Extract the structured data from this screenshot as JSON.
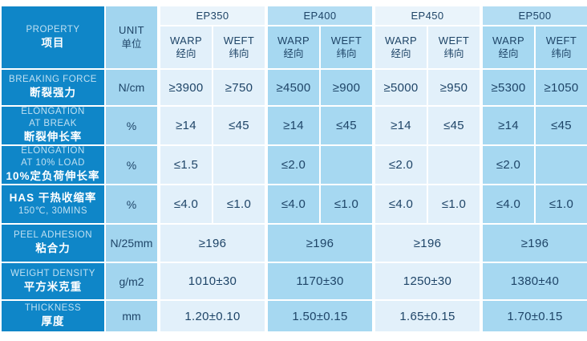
{
  "colors": {
    "dark_blue": "#0f86c8",
    "unit_column": "#a2d5ef",
    "light_cell": "#e2f0fa",
    "light_group_header": "#eaf4fb",
    "medium_cell": "#a6d8f1",
    "medium_group_header": "#b3ddf3",
    "value_text": "#1e4467",
    "property_en_text": "#bfe0f2",
    "property_zh_text": "#ffffff"
  },
  "table": {
    "property_header": {
      "en": "PROPERTY",
      "zh": "项目"
    },
    "unit_header": {
      "en": "UNIT",
      "zh": "单位"
    },
    "warp_header": {
      "en": "WARP",
      "zh": "经向"
    },
    "weft_header": {
      "en": "WEFT",
      "zh": "纬向"
    },
    "groups": [
      {
        "name": "EP350",
        "tone": "light"
      },
      {
        "name": "EP400",
        "tone": "medium"
      },
      {
        "name": "EP450",
        "tone": "light"
      },
      {
        "name": "EP500",
        "tone": "medium"
      }
    ],
    "rows": [
      {
        "label_lines": [
          {
            "text": "BREAKING FORCE",
            "bold": false
          },
          {
            "text": "断裂强力",
            "bold": true
          }
        ],
        "unit": "N/cm",
        "merged": false,
        "values": [
          {
            "warp": "≥3900",
            "weft": "≥750"
          },
          {
            "warp": "≥4500",
            "weft": "≥900"
          },
          {
            "warp": "≥5000",
            "weft": "≥950"
          },
          {
            "warp": "≥5300",
            "weft": "≥1050"
          }
        ]
      },
      {
        "label_lines": [
          {
            "text": "ELONGATION",
            "bold": false
          },
          {
            "text": "AT BREAK",
            "bold": false
          },
          {
            "text": "断裂伸长率",
            "bold": true
          }
        ],
        "unit": "%",
        "merged": false,
        "values": [
          {
            "warp": "≥14",
            "weft": "≤45"
          },
          {
            "warp": "≥14",
            "weft": "≤45"
          },
          {
            "warp": "≥14",
            "weft": "≤45"
          },
          {
            "warp": "≥14",
            "weft": "≤45"
          }
        ]
      },
      {
        "label_lines": [
          {
            "text": "ELONGATION",
            "bold": false
          },
          {
            "text": "AT 10% LOAD",
            "bold": false
          },
          {
            "text": "10%定负荷伸长率",
            "bold": true
          }
        ],
        "unit": "%",
        "merged": false,
        "values": [
          {
            "warp": "≤1.5",
            "weft": ""
          },
          {
            "warp": "≤2.0",
            "weft": ""
          },
          {
            "warp": "≤2.0",
            "weft": ""
          },
          {
            "warp": "≤2.0",
            "weft": ""
          }
        ]
      },
      {
        "label_lines": [
          {
            "text": "HAS  干热收缩率",
            "bold": true
          },
          {
            "text": "150℃, 30MINS",
            "bold": false
          }
        ],
        "unit": "%",
        "merged": false,
        "values": [
          {
            "warp": "≤4.0",
            "weft": "≤1.0"
          },
          {
            "warp": "≤4.0",
            "weft": "≤1.0"
          },
          {
            "warp": "≤4.0",
            "weft": "≤1.0"
          },
          {
            "warp": "≤4.0",
            "weft": "≤1.0"
          }
        ]
      },
      {
        "label_lines": [
          {
            "text": "PEEL ADHESION",
            "bold": false
          },
          {
            "text": "粘合力",
            "bold": true
          }
        ],
        "unit": "N/25mm",
        "merged": true,
        "values": [
          {
            "value": "≥196"
          },
          {
            "value": "≥196"
          },
          {
            "value": "≥196"
          },
          {
            "value": "≥196"
          }
        ]
      },
      {
        "label_lines": [
          {
            "text": "WEIGHT DENSITY",
            "bold": false
          },
          {
            "text": "平方米克重",
            "bold": true
          }
        ],
        "unit": "g/m2",
        "merged": true,
        "values": [
          {
            "value": "1010±30"
          },
          {
            "value": "1170±30"
          },
          {
            "value": "1250±30"
          },
          {
            "value": "1380±40"
          }
        ]
      },
      {
        "label_lines": [
          {
            "text": "THICKNESS",
            "bold": false
          },
          {
            "text": "厚度",
            "bold": true
          }
        ],
        "unit": "mm",
        "merged": true,
        "values": [
          {
            "value": "1.20±0.10"
          },
          {
            "value": "1.50±0.15"
          },
          {
            "value": "1.65±0.15"
          },
          {
            "value": "1.70±0.15"
          }
        ]
      }
    ]
  }
}
